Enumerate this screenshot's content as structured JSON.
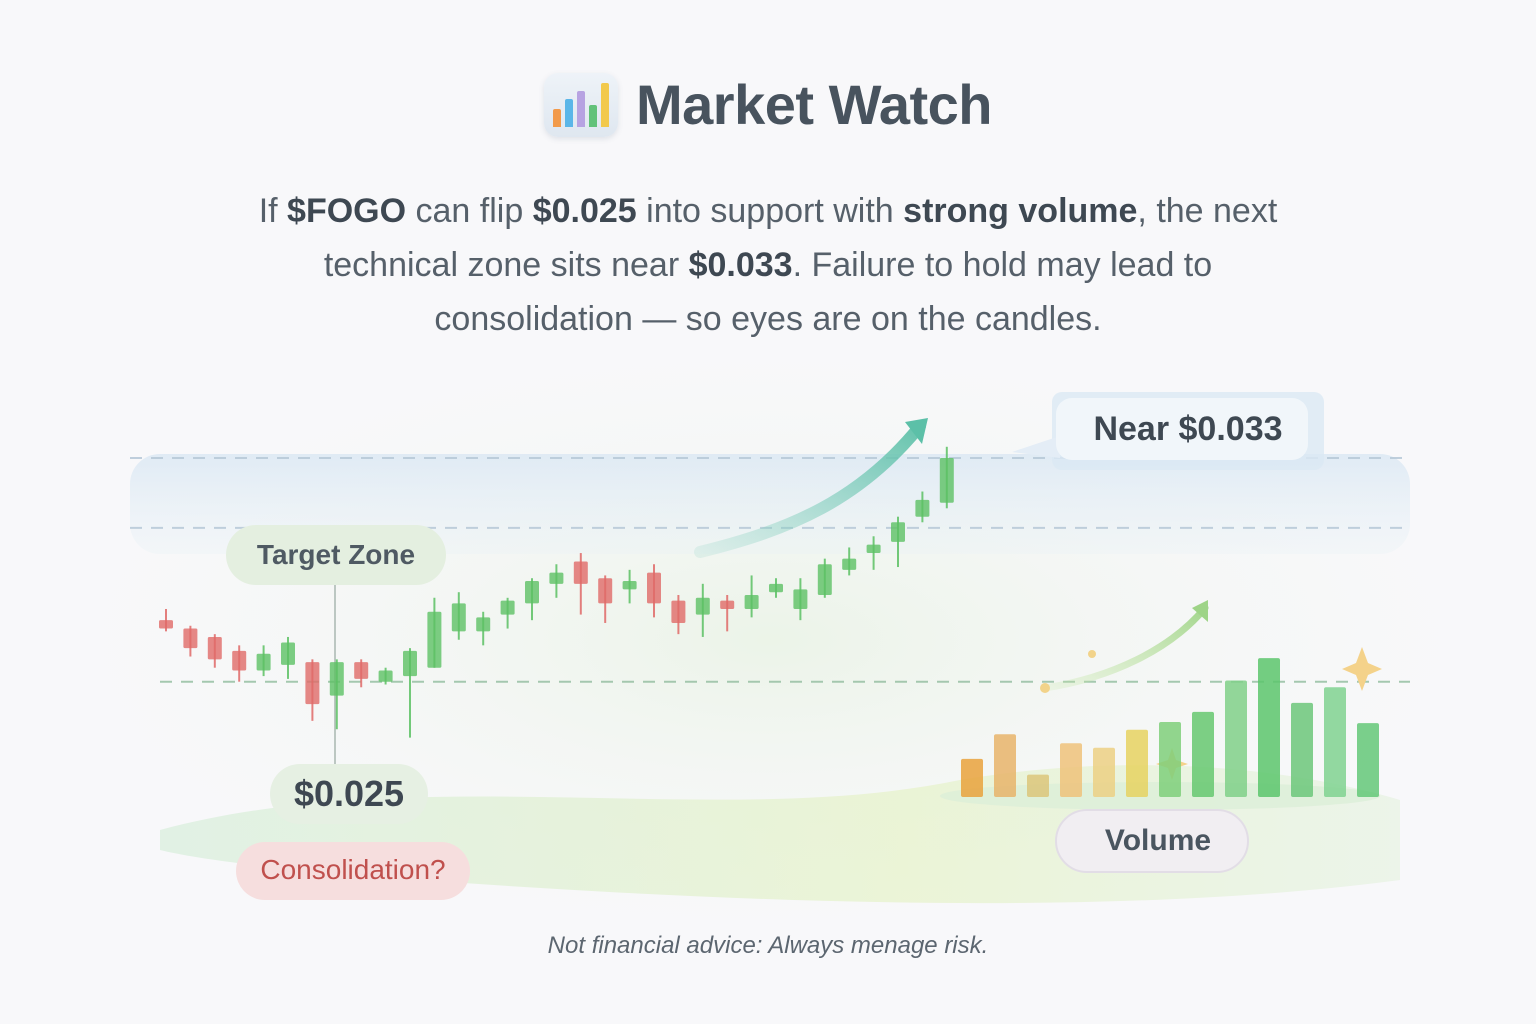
{
  "header": {
    "title": "Market Watch",
    "logo_icon": "bar-chart-logo-icon"
  },
  "blurb": {
    "line1": [
      {
        "t": "If ",
        "b": false
      },
      {
        "t": "$FOGO",
        "b": true
      },
      {
        "t": " can flip ",
        "b": false
      },
      {
        "t": "$0.025",
        "b": true
      },
      {
        "t": " into support with ",
        "b": false
      },
      {
        "t": "strong volume",
        "b": true
      },
      {
        "t": ", the next",
        "b": false
      }
    ],
    "line2": [
      {
        "t": "technical zone sits near ",
        "b": false
      },
      {
        "t": "$0.033",
        "b": true
      },
      {
        "t": ". Failure to hold may lead to",
        "b": false
      }
    ],
    "line3": [
      {
        "t": "consolidation — so eyes are on the candles.",
        "b": false
      }
    ]
  },
  "chart_data": {
    "type": "candlestick",
    "levels": [
      {
        "label": "$0.025",
        "value": 0.025
      },
      {
        "label": "Target Zone",
        "value": 0.0305
      },
      {
        "label": "Near $0.033",
        "value": 0.033
      }
    ],
    "annotations": [
      "Target Zone",
      "$0.025",
      "Consolidation?",
      "Near $0.033",
      "Volume"
    ],
    "candles": [
      {
        "o": 0.0272,
        "h": 0.0276,
        "l": 0.0268,
        "c": 0.0269
      },
      {
        "o": 0.0269,
        "h": 0.027,
        "l": 0.0259,
        "c": 0.0262
      },
      {
        "o": 0.0266,
        "h": 0.0267,
        "l": 0.0255,
        "c": 0.0258
      },
      {
        "o": 0.0261,
        "h": 0.0263,
        "l": 0.025,
        "c": 0.0254
      },
      {
        "o": 0.0254,
        "h": 0.0263,
        "l": 0.0252,
        "c": 0.026
      },
      {
        "o": 0.0256,
        "h": 0.0266,
        "l": 0.0251,
        "c": 0.0264
      },
      {
        "o": 0.0257,
        "h": 0.0258,
        "l": 0.0236,
        "c": 0.0242
      },
      {
        "o": 0.0245,
        "h": 0.0258,
        "l": 0.0233,
        "c": 0.0257
      },
      {
        "o": 0.0257,
        "h": 0.0258,
        "l": 0.0248,
        "c": 0.0251
      },
      {
        "o": 0.025,
        "h": 0.0255,
        "l": 0.0249,
        "c": 0.0254
      },
      {
        "o": 0.0252,
        "h": 0.0262,
        "l": 0.023,
        "c": 0.0261
      },
      {
        "o": 0.0255,
        "h": 0.028,
        "l": 0.0255,
        "c": 0.0275
      },
      {
        "o": 0.0268,
        "h": 0.0282,
        "l": 0.0265,
        "c": 0.0278
      },
      {
        "o": 0.0268,
        "h": 0.0275,
        "l": 0.0263,
        "c": 0.0273
      },
      {
        "o": 0.0274,
        "h": 0.028,
        "l": 0.0269,
        "c": 0.0279
      },
      {
        "o": 0.0278,
        "h": 0.0287,
        "l": 0.0272,
        "c": 0.0286
      },
      {
        "o": 0.0285,
        "h": 0.0292,
        "l": 0.028,
        "c": 0.0289
      },
      {
        "o": 0.0293,
        "h": 0.0296,
        "l": 0.0274,
        "c": 0.0285
      },
      {
        "o": 0.0287,
        "h": 0.0288,
        "l": 0.0271,
        "c": 0.0278
      },
      {
        "o": 0.0283,
        "h": 0.029,
        "l": 0.0278,
        "c": 0.0286
      },
      {
        "o": 0.0289,
        "h": 0.0292,
        "l": 0.0273,
        "c": 0.0278
      },
      {
        "o": 0.0279,
        "h": 0.0281,
        "l": 0.0267,
        "c": 0.0271
      },
      {
        "o": 0.0274,
        "h": 0.0285,
        "l": 0.0266,
        "c": 0.028
      },
      {
        "o": 0.0279,
        "h": 0.0281,
        "l": 0.0268,
        "c": 0.0276
      },
      {
        "o": 0.0276,
        "h": 0.0288,
        "l": 0.0273,
        "c": 0.0281
      },
      {
        "o": 0.0282,
        "h": 0.0287,
        "l": 0.028,
        "c": 0.0285
      },
      {
        "o": 0.0276,
        "h": 0.0287,
        "l": 0.0272,
        "c": 0.0283
      },
      {
        "o": 0.0281,
        "h": 0.0294,
        "l": 0.028,
        "c": 0.0292
      },
      {
        "o": 0.029,
        "h": 0.0298,
        "l": 0.0288,
        "c": 0.0294
      },
      {
        "o": 0.0296,
        "h": 0.0302,
        "l": 0.029,
        "c": 0.0299
      },
      {
        "o": 0.03,
        "h": 0.0309,
        "l": 0.0291,
        "c": 0.0307
      },
      {
        "o": 0.0309,
        "h": 0.0318,
        "l": 0.0307,
        "c": 0.0315
      },
      {
        "o": 0.0314,
        "h": 0.0334,
        "l": 0.0312,
        "c": 0.033
      }
    ],
    "volume": [
      {
        "v": 34,
        "color": "#e9a23c"
      },
      {
        "v": 56,
        "color": "#e8b46a"
      },
      {
        "v": 20,
        "color": "#dcc67a"
      },
      {
        "v": 48,
        "color": "#eec27a"
      },
      {
        "v": 44,
        "color": "#ecd084"
      },
      {
        "v": 60,
        "color": "#e6d260"
      },
      {
        "v": 67,
        "color": "#7fcf7a"
      },
      {
        "v": 76,
        "color": "#66c870"
      },
      {
        "v": 104,
        "color": "#80d088"
      },
      {
        "v": 124,
        "color": "#5cc66c"
      },
      {
        "v": 84,
        "color": "#6cc77a"
      },
      {
        "v": 98,
        "color": "#80d290"
      },
      {
        "v": 66,
        "color": "#64c878"
      }
    ],
    "grid": false,
    "legend": "none"
  },
  "footer": {
    "disclaimer": "Not financial advice: Always menage risk."
  },
  "colors": {
    "up": "#5cc164",
    "down": "#e06a68",
    "accent_teal": "#5fc3b2",
    "volume_arrow": "#a9d98c",
    "consolidation": "#c0504d"
  }
}
